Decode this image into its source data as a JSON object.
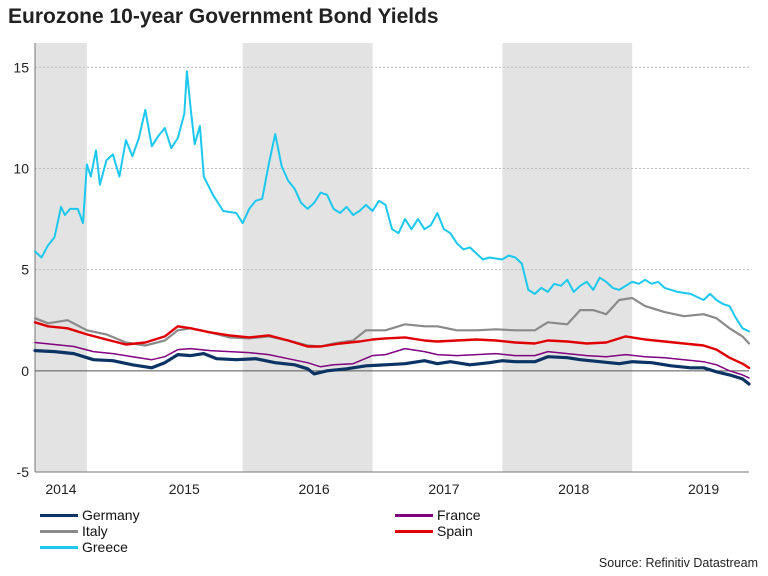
{
  "chart_data": {
    "type": "line",
    "title": "Eurozone 10-year Government Bond Yields",
    "xlabel": "",
    "ylabel": "",
    "x_range": [
      2013.9,
      2019.4
    ],
    "ylim": [
      -5,
      16.2
    ],
    "y_ticks": [
      -5,
      0,
      5,
      10,
      15
    ],
    "x_tick_labels": [
      {
        "label": "2014",
        "pos": 2014.1
      },
      {
        "label": "2015",
        "pos": 2015.05
      },
      {
        "label": "2016",
        "pos": 2016.05
      },
      {
        "label": "2017",
        "pos": 2017.05
      },
      {
        "label": "2018",
        "pos": 2018.05
      },
      {
        "label": "2019",
        "pos": 2019.05
      }
    ],
    "shaded_periods": [
      [
        2013.9,
        2014.3
      ],
      [
        2015.5,
        2016.5
      ],
      [
        2017.5,
        2018.5
      ]
    ],
    "grid": true,
    "legend": "bottom",
    "series": [
      {
        "name": "Germany",
        "color": "#0b3364",
        "width": 3.2,
        "points": [
          [
            2013.9,
            1.0
          ],
          [
            2014.05,
            0.95
          ],
          [
            2014.2,
            0.85
          ],
          [
            2014.35,
            0.55
          ],
          [
            2014.5,
            0.5
          ],
          [
            2014.65,
            0.3
          ],
          [
            2014.8,
            0.15
          ],
          [
            2014.9,
            0.4
          ],
          [
            2015.0,
            0.8
          ],
          [
            2015.1,
            0.75
          ],
          [
            2015.2,
            0.85
          ],
          [
            2015.3,
            0.6
          ],
          [
            2015.45,
            0.55
          ],
          [
            2015.6,
            0.6
          ],
          [
            2015.75,
            0.4
          ],
          [
            2015.9,
            0.3
          ],
          [
            2016.0,
            0.1
          ],
          [
            2016.05,
            -0.15
          ],
          [
            2016.15,
            0.0
          ],
          [
            2016.3,
            0.1
          ],
          [
            2016.45,
            0.25
          ],
          [
            2016.6,
            0.3
          ],
          [
            2016.75,
            0.35
          ],
          [
            2016.9,
            0.5
          ],
          [
            2017.0,
            0.35
          ],
          [
            2017.1,
            0.45
          ],
          [
            2017.25,
            0.3
          ],
          [
            2017.4,
            0.4
          ],
          [
            2017.5,
            0.5
          ],
          [
            2017.6,
            0.45
          ],
          [
            2017.75,
            0.45
          ],
          [
            2017.85,
            0.7
          ],
          [
            2018.0,
            0.65
          ],
          [
            2018.1,
            0.55
          ],
          [
            2018.25,
            0.45
          ],
          [
            2018.4,
            0.35
          ],
          [
            2018.5,
            0.45
          ],
          [
            2018.65,
            0.4
          ],
          [
            2018.8,
            0.25
          ],
          [
            2018.95,
            0.15
          ],
          [
            2019.05,
            0.15
          ],
          [
            2019.15,
            -0.05
          ],
          [
            2019.25,
            -0.2
          ],
          [
            2019.35,
            -0.4
          ],
          [
            2019.4,
            -0.65
          ]
        ]
      },
      {
        "name": "France",
        "color": "#800080",
        "width": 1.5,
        "points": [
          [
            2013.9,
            1.4
          ],
          [
            2014.05,
            1.3
          ],
          [
            2014.2,
            1.2
          ],
          [
            2014.35,
            0.95
          ],
          [
            2014.5,
            0.85
          ],
          [
            2014.65,
            0.7
          ],
          [
            2014.8,
            0.55
          ],
          [
            2014.9,
            0.7
          ],
          [
            2015.0,
            1.05
          ],
          [
            2015.1,
            1.1
          ],
          [
            2015.25,
            1.0
          ],
          [
            2015.4,
            0.95
          ],
          [
            2015.55,
            0.9
          ],
          [
            2015.7,
            0.8
          ],
          [
            2015.85,
            0.6
          ],
          [
            2016.0,
            0.4
          ],
          [
            2016.1,
            0.2
          ],
          [
            2016.2,
            0.3
          ],
          [
            2016.35,
            0.35
          ],
          [
            2016.5,
            0.75
          ],
          [
            2016.6,
            0.8
          ],
          [
            2016.75,
            1.1
          ],
          [
            2016.9,
            0.95
          ],
          [
            2017.0,
            0.8
          ],
          [
            2017.15,
            0.75
          ],
          [
            2017.3,
            0.8
          ],
          [
            2017.45,
            0.85
          ],
          [
            2017.6,
            0.75
          ],
          [
            2017.75,
            0.75
          ],
          [
            2017.85,
            0.95
          ],
          [
            2018.0,
            0.85
          ],
          [
            2018.15,
            0.75
          ],
          [
            2018.3,
            0.7
          ],
          [
            2018.45,
            0.8
          ],
          [
            2018.6,
            0.7
          ],
          [
            2018.75,
            0.65
          ],
          [
            2018.9,
            0.55
          ],
          [
            2019.05,
            0.45
          ],
          [
            2019.15,
            0.3
          ],
          [
            2019.25,
            0.0
          ],
          [
            2019.35,
            -0.2
          ],
          [
            2019.4,
            -0.35
          ]
        ]
      },
      {
        "name": "Italy",
        "color": "#8a8a8a",
        "width": 2.2,
        "points": [
          [
            2013.9,
            2.6
          ],
          [
            2014.0,
            2.35
          ],
          [
            2014.15,
            2.5
          ],
          [
            2014.3,
            2.0
          ],
          [
            2014.45,
            1.8
          ],
          [
            2014.6,
            1.4
          ],
          [
            2014.75,
            1.25
          ],
          [
            2014.9,
            1.5
          ],
          [
            2015.0,
            2.0
          ],
          [
            2015.1,
            2.1
          ],
          [
            2015.25,
            1.9
          ],
          [
            2015.4,
            1.65
          ],
          [
            2015.55,
            1.6
          ],
          [
            2015.7,
            1.7
          ],
          [
            2015.85,
            1.5
          ],
          [
            2016.0,
            1.25
          ],
          [
            2016.1,
            1.2
          ],
          [
            2016.2,
            1.35
          ],
          [
            2016.35,
            1.5
          ],
          [
            2016.45,
            2.0
          ],
          [
            2016.6,
            2.0
          ],
          [
            2016.75,
            2.3
          ],
          [
            2016.9,
            2.2
          ],
          [
            2017.0,
            2.2
          ],
          [
            2017.15,
            2.0
          ],
          [
            2017.3,
            2.0
          ],
          [
            2017.45,
            2.05
          ],
          [
            2017.6,
            2.0
          ],
          [
            2017.75,
            2.0
          ],
          [
            2017.85,
            2.4
          ],
          [
            2018.0,
            2.3
          ],
          [
            2018.1,
            3.0
          ],
          [
            2018.2,
            3.0
          ],
          [
            2018.3,
            2.8
          ],
          [
            2018.4,
            3.5
          ],
          [
            2018.5,
            3.6
          ],
          [
            2018.6,
            3.2
          ],
          [
            2018.75,
            2.9
          ],
          [
            2018.9,
            2.7
          ],
          [
            2019.05,
            2.8
          ],
          [
            2019.15,
            2.6
          ],
          [
            2019.25,
            2.1
          ],
          [
            2019.35,
            1.7
          ],
          [
            2019.4,
            1.35
          ]
        ]
      },
      {
        "name": "Spain",
        "color": "#e00000",
        "width": 2.4,
        "points": [
          [
            2013.9,
            2.4
          ],
          [
            2014.0,
            2.2
          ],
          [
            2014.15,
            2.1
          ],
          [
            2014.3,
            1.8
          ],
          [
            2014.45,
            1.55
          ],
          [
            2014.6,
            1.3
          ],
          [
            2014.75,
            1.4
          ],
          [
            2014.9,
            1.7
          ],
          [
            2015.0,
            2.2
          ],
          [
            2015.1,
            2.1
          ],
          [
            2015.25,
            1.9
          ],
          [
            2015.4,
            1.75
          ],
          [
            2015.55,
            1.65
          ],
          [
            2015.7,
            1.75
          ],
          [
            2015.85,
            1.5
          ],
          [
            2016.0,
            1.2
          ],
          [
            2016.1,
            1.2
          ],
          [
            2016.25,
            1.35
          ],
          [
            2016.4,
            1.45
          ],
          [
            2016.5,
            1.55
          ],
          [
            2016.6,
            1.6
          ],
          [
            2016.75,
            1.65
          ],
          [
            2016.9,
            1.5
          ],
          [
            2017.0,
            1.45
          ],
          [
            2017.15,
            1.5
          ],
          [
            2017.3,
            1.55
          ],
          [
            2017.45,
            1.5
          ],
          [
            2017.6,
            1.4
          ],
          [
            2017.75,
            1.35
          ],
          [
            2017.85,
            1.5
          ],
          [
            2018.0,
            1.45
          ],
          [
            2018.15,
            1.35
          ],
          [
            2018.3,
            1.4
          ],
          [
            2018.45,
            1.7
          ],
          [
            2018.6,
            1.55
          ],
          [
            2018.75,
            1.45
          ],
          [
            2018.9,
            1.35
          ],
          [
            2019.05,
            1.25
          ],
          [
            2019.15,
            1.05
          ],
          [
            2019.25,
            0.65
          ],
          [
            2019.35,
            0.35
          ],
          [
            2019.4,
            0.15
          ]
        ]
      },
      {
        "name": "Greece",
        "color": "#1cc8ee",
        "width": 2.0,
        "points": [
          [
            2013.9,
            5.9
          ],
          [
            2013.95,
            5.6
          ],
          [
            2014.0,
            6.2
          ],
          [
            2014.05,
            6.6
          ],
          [
            2014.1,
            8.1
          ],
          [
            2014.13,
            7.7
          ],
          [
            2014.17,
            8.0
          ],
          [
            2014.23,
            8.0
          ],
          [
            2014.27,
            7.3
          ],
          [
            2014.3,
            10.2
          ],
          [
            2014.33,
            9.6
          ],
          [
            2014.37,
            10.9
          ],
          [
            2014.4,
            9.2
          ],
          [
            2014.45,
            10.4
          ],
          [
            2014.5,
            10.7
          ],
          [
            2014.55,
            9.6
          ],
          [
            2014.6,
            11.4
          ],
          [
            2014.65,
            10.6
          ],
          [
            2014.7,
            11.5
          ],
          [
            2014.75,
            12.9
          ],
          [
            2014.8,
            11.1
          ],
          [
            2014.85,
            11.6
          ],
          [
            2014.9,
            12.0
          ],
          [
            2014.95,
            11.0
          ],
          [
            2015.0,
            11.5
          ],
          [
            2015.05,
            12.7
          ],
          [
            2015.07,
            14.8
          ],
          [
            2015.1,
            12.9
          ],
          [
            2015.13,
            11.2
          ],
          [
            2015.17,
            12.1
          ],
          [
            2015.2,
            9.6
          ],
          [
            2015.27,
            8.7
          ],
          [
            2015.35,
            7.9
          ],
          [
            2015.45,
            7.8
          ],
          [
            2015.5,
            7.3
          ],
          [
            2015.55,
            8.0
          ],
          [
            2015.6,
            8.4
          ],
          [
            2015.65,
            8.5
          ],
          [
            2015.7,
            10.2
          ],
          [
            2015.75,
            11.7
          ],
          [
            2015.8,
            10.1
          ],
          [
            2015.85,
            9.4
          ],
          [
            2015.9,
            9.0
          ],
          [
            2015.95,
            8.3
          ],
          [
            2016.0,
            8.0
          ],
          [
            2016.05,
            8.3
          ],
          [
            2016.1,
            8.8
          ],
          [
            2016.15,
            8.7
          ],
          [
            2016.2,
            8.0
          ],
          [
            2016.25,
            7.8
          ],
          [
            2016.3,
            8.1
          ],
          [
            2016.35,
            7.7
          ],
          [
            2016.4,
            7.9
          ],
          [
            2016.45,
            8.2
          ],
          [
            2016.5,
            7.9
          ],
          [
            2016.55,
            8.4
          ],
          [
            2016.6,
            8.2
          ],
          [
            2016.65,
            7.0
          ],
          [
            2016.7,
            6.8
          ],
          [
            2016.75,
            7.5
          ],
          [
            2016.8,
            7.0
          ],
          [
            2016.85,
            7.5
          ],
          [
            2016.9,
            7.0
          ],
          [
            2016.95,
            7.2
          ],
          [
            2017.0,
            7.8
          ],
          [
            2017.05,
            7.0
          ],
          [
            2017.1,
            6.8
          ],
          [
            2017.15,
            6.3
          ],
          [
            2017.2,
            6.0
          ],
          [
            2017.25,
            6.1
          ],
          [
            2017.3,
            5.8
          ],
          [
            2017.35,
            5.5
          ],
          [
            2017.4,
            5.6
          ],
          [
            2017.5,
            5.5
          ],
          [
            2017.55,
            5.7
          ],
          [
            2017.6,
            5.6
          ],
          [
            2017.65,
            5.3
          ],
          [
            2017.7,
            4.0
          ],
          [
            2017.75,
            3.8
          ],
          [
            2017.8,
            4.1
          ],
          [
            2017.85,
            3.9
          ],
          [
            2017.9,
            4.3
          ],
          [
            2017.95,
            4.2
          ],
          [
            2018.0,
            4.5
          ],
          [
            2018.05,
            3.9
          ],
          [
            2018.1,
            4.2
          ],
          [
            2018.15,
            4.4
          ],
          [
            2018.2,
            4.0
          ],
          [
            2018.25,
            4.6
          ],
          [
            2018.3,
            4.4
          ],
          [
            2018.35,
            4.1
          ],
          [
            2018.4,
            4.0
          ],
          [
            2018.45,
            4.2
          ],
          [
            2018.5,
            4.4
          ],
          [
            2018.55,
            4.3
          ],
          [
            2018.6,
            4.5
          ],
          [
            2018.65,
            4.3
          ],
          [
            2018.7,
            4.4
          ],
          [
            2018.75,
            4.1
          ],
          [
            2018.85,
            3.9
          ],
          [
            2018.95,
            3.8
          ],
          [
            2019.05,
            3.5
          ],
          [
            2019.1,
            3.8
          ],
          [
            2019.15,
            3.5
          ],
          [
            2019.2,
            3.3
          ],
          [
            2019.25,
            3.2
          ],
          [
            2019.3,
            2.6
          ],
          [
            2019.35,
            2.1
          ],
          [
            2019.4,
            1.95
          ]
        ]
      }
    ]
  },
  "legend_items": [
    {
      "label": "Germany"
    },
    {
      "label": "France"
    },
    {
      "label": "Italy"
    },
    {
      "label": "Spain"
    },
    {
      "label": "Greece"
    }
  ],
  "source": "Source: Refinitiv Datastream"
}
